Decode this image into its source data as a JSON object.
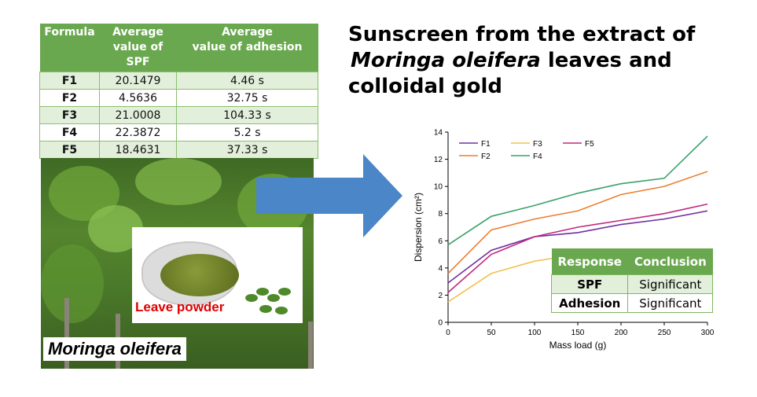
{
  "formula_table": {
    "headers": [
      "Formula",
      "Average value of SPF",
      "Average value of adhesion"
    ],
    "rows": [
      {
        "formula": "F1",
        "spf": "20.1479",
        "adhesion": "4.46 s"
      },
      {
        "formula": "F2",
        "spf": "4.5636",
        "adhesion": "32.75 s"
      },
      {
        "formula": "F3",
        "spf": "21.0008",
        "adhesion": "104.33 s"
      },
      {
        "formula": "F4",
        "spf": "22.3872",
        "adhesion": "5.2 s"
      },
      {
        "formula": "F5",
        "spf": "18.4631",
        "adhesion": "37.33 s"
      }
    ]
  },
  "photo": {
    "powder_label": "Leave powder",
    "species_label": "Moringa oleifera"
  },
  "title": {
    "line1": "Sunscreen from the extract of",
    "line2_italic": "Moringa oleifera",
    "line2_rest": " leaves and",
    "line3": "colloidal gold"
  },
  "colors": {
    "table_header": "#6aa84f",
    "table_band": "#e2efda",
    "arrow": "#4a86c8",
    "powder_label": "#e00000"
  },
  "chart_data": {
    "type": "line",
    "xlabel": "Mass load (g)",
    "ylabel": "Dispersion (cm²)",
    "xlim": [
      0,
      300
    ],
    "ylim": [
      0,
      14
    ],
    "xticks": [
      0,
      50,
      100,
      150,
      200,
      250,
      300
    ],
    "yticks": [
      0,
      2,
      4,
      6,
      8,
      10,
      12,
      14
    ],
    "grid": false,
    "legend": "top-left",
    "series": [
      {
        "name": "F1",
        "color": "#7030a0",
        "x": [
          0,
          50,
          100,
          150,
          200,
          250,
          300
        ],
        "y": [
          2.9,
          5.3,
          6.3,
          6.6,
          7.2,
          7.6,
          8.2
        ]
      },
      {
        "name": "F2",
        "color": "#ed7d31",
        "x": [
          0,
          50,
          100,
          150,
          200,
          250,
          300
        ],
        "y": [
          3.6,
          6.8,
          7.6,
          8.2,
          9.4,
          10.0,
          11.1
        ]
      },
      {
        "name": "F3",
        "color": "#f2c14e",
        "x": [
          0,
          50,
          100,
          120
        ],
        "y": [
          1.5,
          3.6,
          4.5,
          4.7
        ]
      },
      {
        "name": "F4",
        "color": "#3aa06a",
        "x": [
          0,
          50,
          100,
          150,
          200,
          250,
          300
        ],
        "y": [
          5.7,
          7.8,
          8.6,
          9.5,
          10.2,
          10.6,
          13.7
        ]
      },
      {
        "name": "F5",
        "color": "#c0287f",
        "x": [
          0,
          50,
          100,
          150,
          200,
          250,
          300
        ],
        "y": [
          2.2,
          5.0,
          6.3,
          7.0,
          7.5,
          8.0,
          8.7
        ]
      }
    ]
  },
  "response_table": {
    "headers": [
      "Response",
      "Conclusion"
    ],
    "rows": [
      {
        "response": "SPF",
        "conclusion": "Significant"
      },
      {
        "response": "Adhesion",
        "conclusion": "Significant"
      }
    ]
  }
}
